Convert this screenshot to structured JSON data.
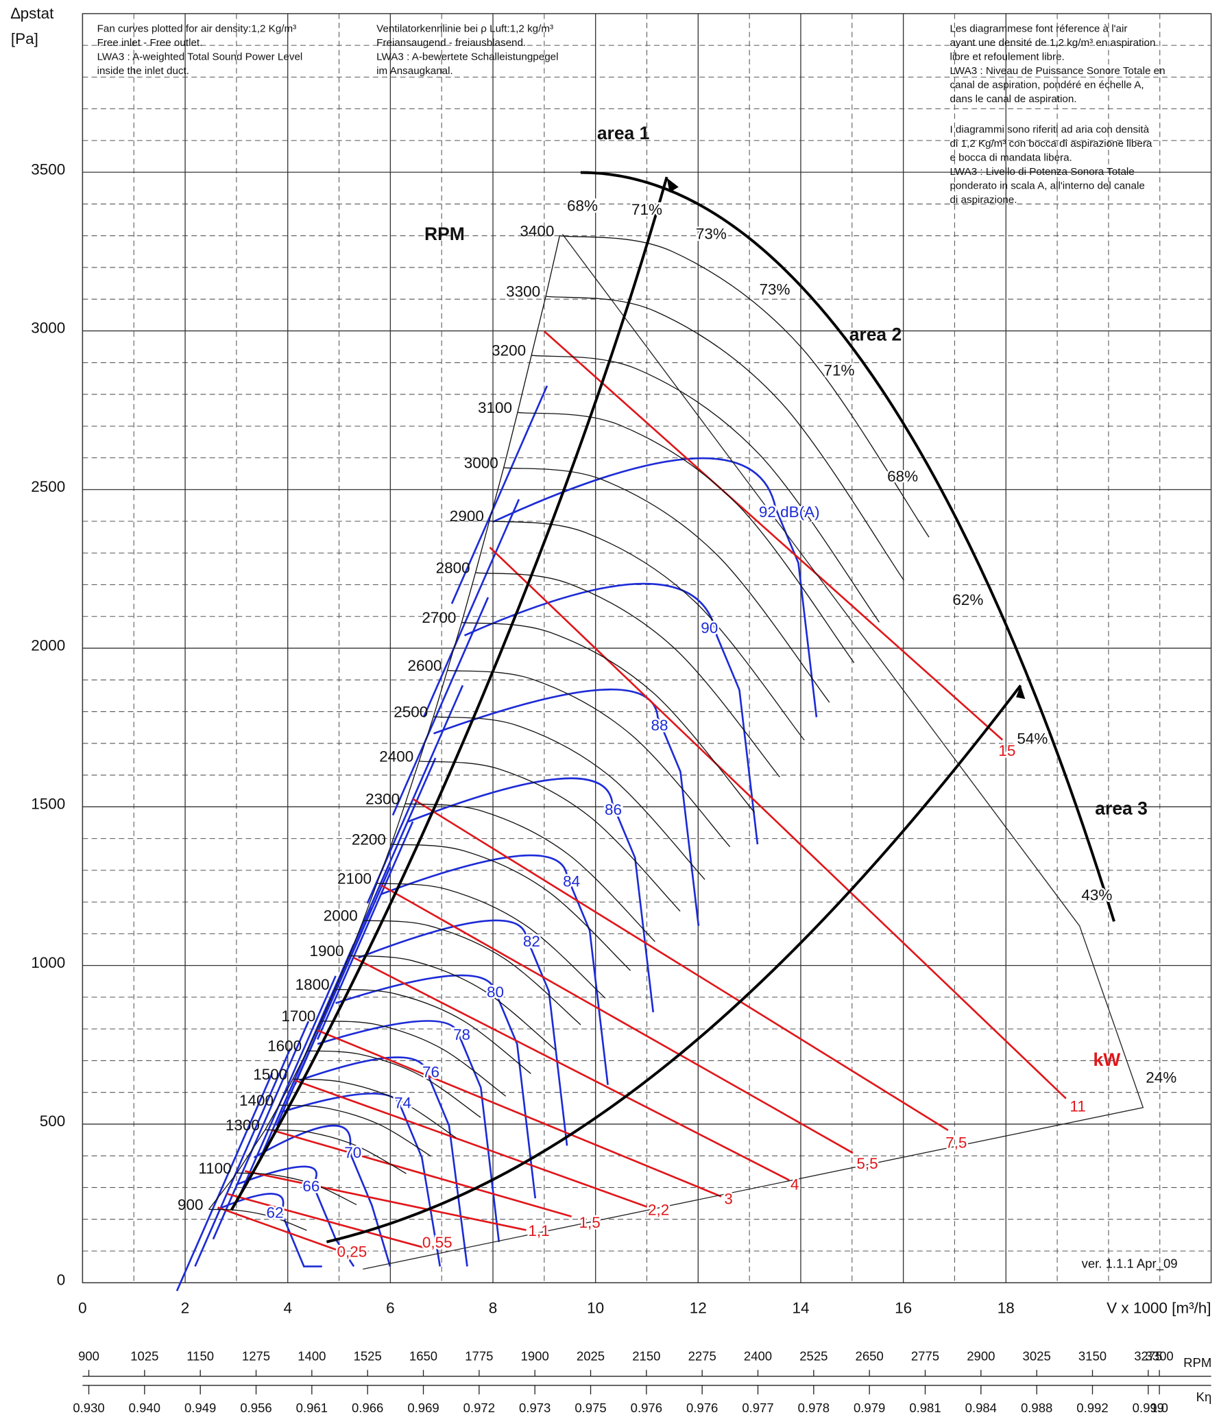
{
  "y_label": "∆pstat",
  "y_unit": "[Pa]",
  "version": "ver. 1.1.1 Apr_09",
  "notes": {
    "en": [
      "Fan curves plotted for air density:1,2 Kg/m³",
      "Free inlet - Free outlet.",
      "LWA3 : A-weighted Total Sound Power Level",
      "inside the inlet duct."
    ],
    "de": [
      "Ventilatorkennlinie bei ρ Luft:1,2 kg/m³",
      "Freiansaugend - freiausblasend.",
      "LWA3 : A-bewertete Schalleistungpegel",
      "im Ansaugkanal."
    ],
    "fr": [
      "Les diagrammese font réference à l'air",
      "ayant une densité de 1,2 kg/m³ en aspiration",
      "libre et refoulement libre.",
      "LWA3 : Niveau de Puissance Sonore Totale en",
      "canal de aspiration, pondéré en échelle A,",
      "dans le canal de aspiration."
    ],
    "it": [
      "I diagrammi sono riferiti ad aria con densità",
      "di 1,2 Kg/m³ con bocca di aspirazione libera",
      "e bocca di mandata libera.",
      "LWA3 : Livello di Potenza Sonora Totale",
      "ponderato in scala A, all'interno del canale",
      "di aspirazione."
    ]
  },
  "chart_data": {
    "type": "fan-curve",
    "x_label": "V x 1000 [m³/h]",
    "rpm_title": "RPM",
    "xlim": [
      0,
      22
    ],
    "ylim": [
      0,
      4000
    ],
    "xticks": [
      0,
      2,
      4,
      6,
      8,
      10,
      12,
      14,
      16,
      18
    ],
    "yticks": [
      0,
      500,
      1000,
      1500,
      2000,
      2500,
      3000,
      3500
    ],
    "grid": true,
    "minor_grid": true,
    "color": "#111111",
    "sound_color": "#1c2bd6",
    "power_color": "#e0161a",
    "series": [
      {
        "name": "900",
        "x": [
          2.46,
          3.04,
          3.71,
          4.37
        ],
        "values": [
          231,
          228,
          207,
          165
        ]
      },
      {
        "name": "1100",
        "x": [
          3.01,
          3.72,
          4.53,
          5.34
        ],
        "values": [
          346,
          340,
          309,
          246
        ]
      },
      {
        "name": "1300",
        "x": [
          3.56,
          4.4,
          5.35,
          6.31
        ],
        "values": [
          482,
          475,
          431,
          344
        ]
      },
      {
        "name": "1400",
        "x": [
          3.83,
          4.74,
          5.77,
          6.79
        ],
        "values": [
          560,
          551,
          500,
          399
        ]
      },
      {
        "name": "1500",
        "x": [
          4.1,
          5.07,
          6.18,
          7.28
        ],
        "values": [
          642,
          632,
          574,
          457
        ]
      },
      {
        "name": "1600",
        "x": [
          4.38,
          5.41,
          6.59,
          7.76
        ],
        "values": [
          731,
          720,
          653,
          521
        ]
      },
      {
        "name": "1700",
        "x": [
          4.65,
          5.75,
          7.0,
          8.25
        ],
        "values": [
          825,
          813,
          738,
          588
        ]
      },
      {
        "name": "1800",
        "x": [
          4.92,
          6.09,
          7.41,
          8.74
        ],
        "values": [
          925,
          911,
          827,
          659
        ]
      },
      {
        "name": "1900",
        "x": [
          5.2,
          6.43,
          7.82,
          9.22
        ],
        "values": [
          1031,
          1015,
          921,
          734
        ]
      },
      {
        "name": "2000",
        "x": [
          5.47,
          6.76,
          8.23,
          9.71
        ],
        "values": [
          1142,
          1125,
          1021,
          813
        ]
      },
      {
        "name": "2100",
        "x": [
          5.74,
          7.1,
          8.65,
          10.19
        ],
        "values": [
          1259,
          1240,
          1125,
          897
        ]
      },
      {
        "name": "2200",
        "x": [
          6.02,
          7.44,
          9.06,
          10.68
        ],
        "values": [
          1382,
          1361,
          1235,
          984
        ]
      },
      {
        "name": "2300",
        "x": [
          6.29,
          7.78,
          9.47,
          11.16
        ],
        "values": [
          1510,
          1487,
          1350,
          1075
        ]
      },
      {
        "name": "2400",
        "x": [
          6.56,
          8.12,
          9.88,
          11.65
        ],
        "values": [
          1644,
          1619,
          1470,
          1171
        ]
      },
      {
        "name": "2500",
        "x": [
          6.84,
          8.46,
          10.29,
          12.13
        ],
        "values": [
          1784,
          1757,
          1595,
          1271
        ]
      },
      {
        "name": "2600",
        "x": [
          7.11,
          8.79,
          10.71,
          12.62
        ],
        "values": [
          1930,
          1901,
          1725,
          1374
        ]
      },
      {
        "name": "2700",
        "x": [
          7.39,
          9.13,
          11.12,
          13.1
        ],
        "values": [
          2081,
          2049,
          1860,
          1482
        ]
      },
      {
        "name": "2800",
        "x": [
          7.66,
          9.47,
          11.53,
          13.59
        ],
        "values": [
          2238,
          2204,
          2001,
          1594
        ]
      },
      {
        "name": "2900",
        "x": [
          7.93,
          9.81,
          11.94,
          14.07
        ],
        "values": [
          2401,
          2364,
          2146,
          1710
        ]
      },
      {
        "name": "3000",
        "x": [
          8.21,
          10.15,
          12.35,
          14.56
        ],
        "values": [
          2569,
          2530,
          2297,
          1829
        ]
      },
      {
        "name": "3100",
        "x": [
          8.48,
          10.49,
          12.77,
          15.04
        ],
        "values": [
          2743,
          2702,
          2452,
          1954
        ]
      },
      {
        "name": "3200",
        "x": [
          8.75,
          10.82,
          13.18,
          15.53
        ],
        "values": [
          2923,
          2879,
          2613,
          2082
        ]
      },
      {
        "name": "3300",
        "x": [
          9.03,
          11.16,
          13.59,
          16.01
        ],
        "values": [
          3109,
          3062,
          2779,
          2214
        ]
      },
      {
        "name": "3400",
        "x": [
          9.3,
          11.5,
          14.0,
          16.5
        ],
        "values": [
          3300,
          3250,
          2950,
          2350
        ]
      }
    ],
    "sound_labels": [
      "92 dB(A)",
      "90",
      "88",
      "86",
      "84",
      "82",
      "80",
      "78",
      "76",
      "74",
      "70",
      "66",
      "62"
    ],
    "power_unit": "kW",
    "power_labels": [
      "0,25",
      "0,55",
      "1,1",
      "1,5",
      "2,2",
      "3",
      "4",
      "5,5",
      "7,5",
      "11",
      "15"
    ],
    "efficiency_labels": [
      "68%",
      "71%",
      "73%",
      "73%",
      "71%",
      "68%",
      "62%",
      "54%",
      "43%",
      "24%"
    ],
    "area_labels": [
      "area 1",
      "area 2",
      "area 3"
    ],
    "rpm_scale": {
      "label": "RPM",
      "lim": [
        886,
        3416
      ],
      "ticks": [
        900,
        1025,
        1150,
        1275,
        1400,
        1525,
        1650,
        1775,
        1900,
        2025,
        2150,
        2275,
        2400,
        2525,
        2650,
        2775,
        2900,
        3025,
        3150,
        3275,
        3300
      ]
    },
    "keta_scale": {
      "label": "Kη",
      "labels": [
        "0.930",
        "0.940",
        "0.949",
        "0.956",
        "0.961",
        "0.966",
        "0.969",
        "0.972",
        "0.973",
        "0.975",
        "0.976",
        "0.976",
        "0.977",
        "0.978",
        "0.979",
        "0.981",
        "0.984",
        "0.988",
        "0.992",
        "0.999",
        "1.0"
      ]
    }
  }
}
